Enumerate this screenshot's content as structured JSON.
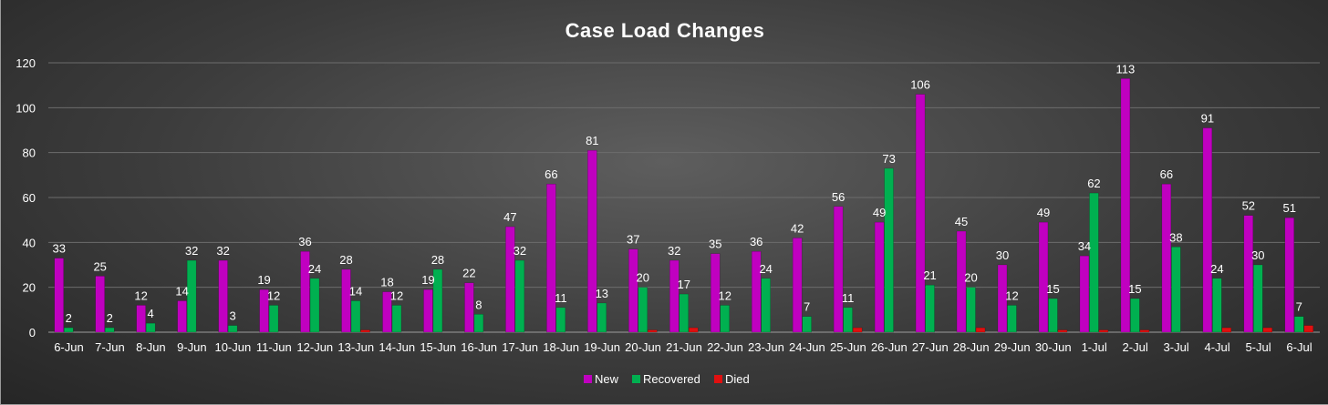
{
  "chart_data": {
    "type": "bar",
    "title": "Case Load Changes",
    "xlabel": "",
    "ylabel": "",
    "ylim": [
      0,
      120
    ],
    "yticks": [
      0,
      20,
      40,
      60,
      80,
      100,
      120
    ],
    "grid": true,
    "legend_position": "bottom",
    "categories": [
      "6-Jun",
      "7-Jun",
      "8-Jun",
      "9-Jun",
      "10-Jun",
      "11-Jun",
      "12-Jun",
      "13-Jun",
      "14-Jun",
      "15-Jun",
      "16-Jun",
      "17-Jun",
      "18-Jun",
      "19-Jun",
      "20-Jun",
      "21-Jun",
      "22-Jun",
      "23-Jun",
      "24-Jun",
      "25-Jun",
      "26-Jun",
      "27-Jun",
      "28-Jun",
      "29-Jun",
      "30-Jun",
      "1-Jul",
      "2-Jul",
      "3-Jul",
      "4-Jul",
      "5-Jul",
      "6-Jul"
    ],
    "series": [
      {
        "name": "New",
        "color": "#c000c0",
        "values": [
          33,
          25,
          12,
          14,
          32,
          19,
          36,
          28,
          18,
          19,
          22,
          47,
          66,
          81,
          37,
          32,
          35,
          36,
          42,
          56,
          49,
          106,
          45,
          30,
          49,
          34,
          113,
          66,
          91,
          52,
          51
        ],
        "labels": [
          "33",
          "25",
          "12",
          "14",
          "32",
          "19",
          "36",
          "28",
          "18",
          "19",
          "22",
          "47",
          "66",
          "81",
          "37",
          "32",
          "35",
          "36",
          "42",
          "56",
          "49",
          "106",
          "45",
          "30",
          "49",
          "34",
          "113",
          "66",
          "91",
          "52",
          "51"
        ]
      },
      {
        "name": "Recovered",
        "color": "#00b050",
        "values": [
          2,
          2,
          4,
          32,
          3,
          12,
          24,
          14,
          12,
          28,
          8,
          32,
          11,
          13,
          20,
          17,
          12,
          24,
          7,
          11,
          73,
          21,
          20,
          12,
          15,
          62,
          15,
          38,
          24,
          30,
          7
        ],
        "labels": [
          "2",
          "2",
          "4",
          "32",
          "3",
          "12",
          "24",
          "14",
          "12",
          "28",
          "8",
          "32",
          "11",
          "13",
          "20",
          "17",
          "12",
          "24",
          "7",
          "11",
          "73",
          "21",
          "20",
          "12",
          "15",
          "62",
          "15",
          "38",
          "24",
          "30",
          "7"
        ]
      },
      {
        "name": "Died",
        "color": "#e01010",
        "values": [
          0,
          0,
          0,
          0,
          0,
          0,
          0,
          1,
          0,
          0,
          0,
          0,
          0,
          0,
          1,
          2,
          0,
          0,
          0,
          2,
          0,
          0,
          2,
          0,
          1,
          1,
          1,
          0,
          2,
          2,
          3
        ],
        "labels": []
      }
    ]
  }
}
